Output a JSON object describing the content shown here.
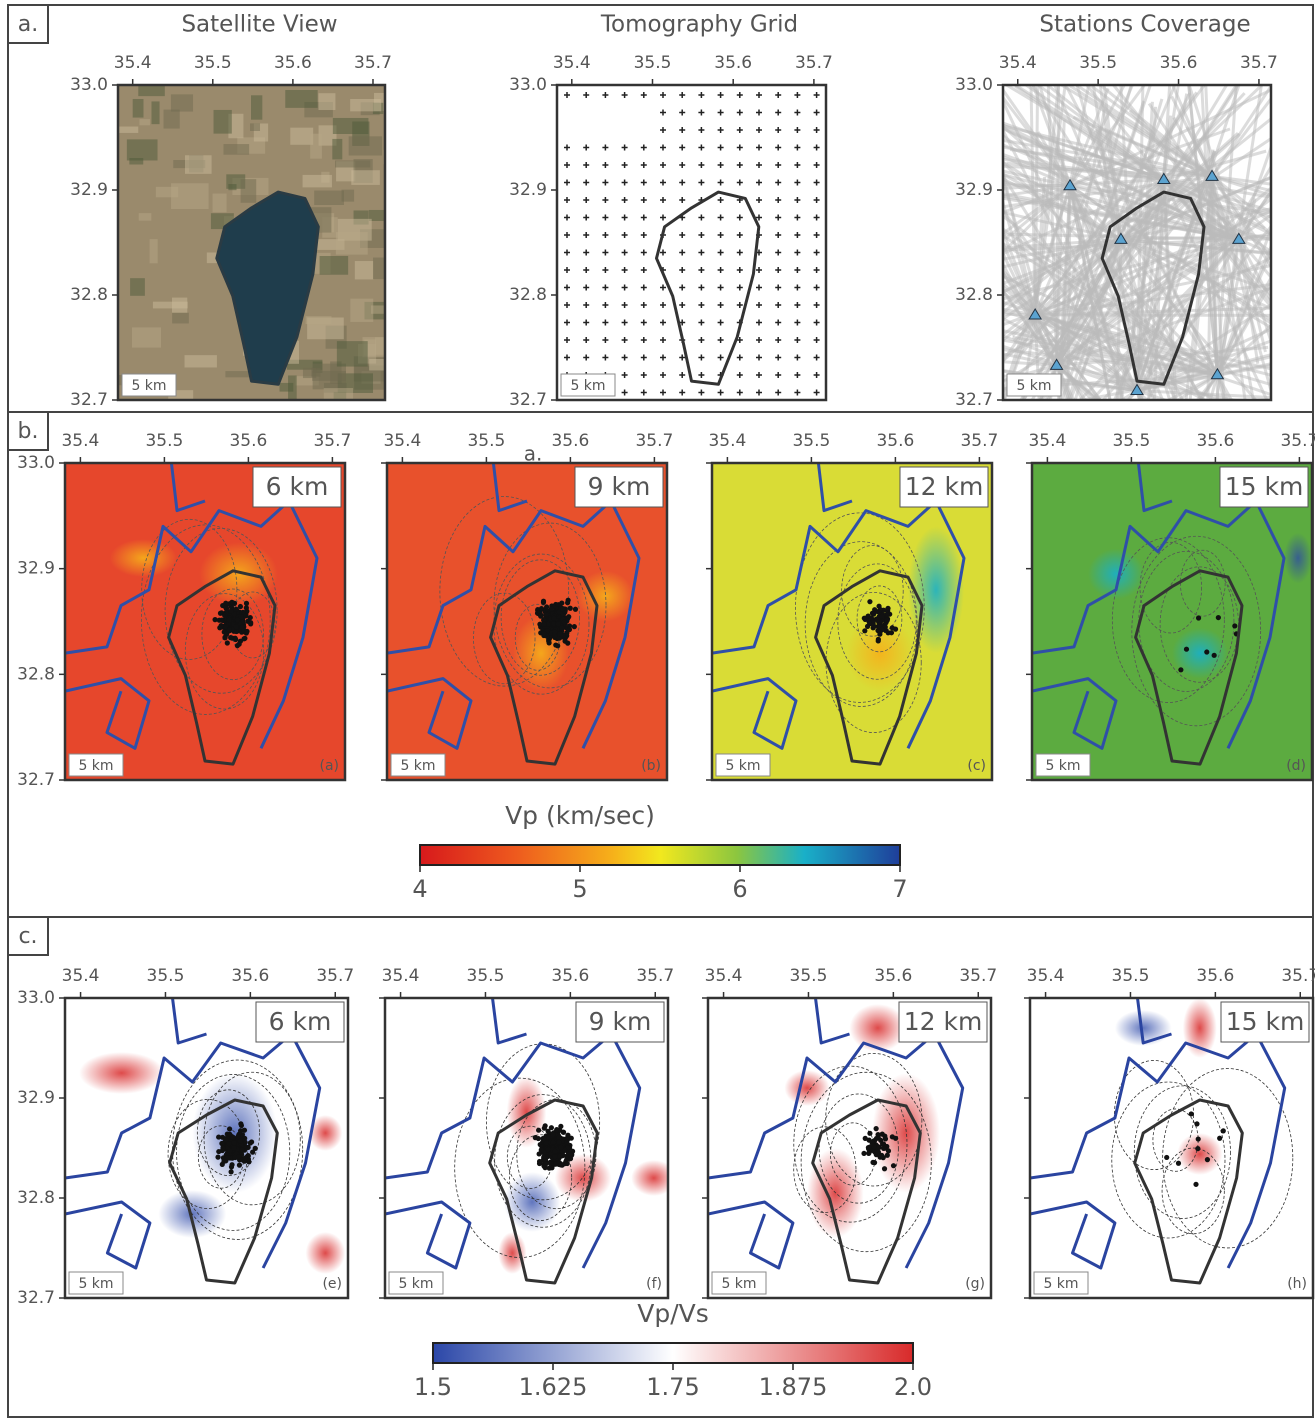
{
  "xtick_labels": [
    "35.4",
    "35.5",
    "35.6",
    "35.7"
  ],
  "ytick_labels": [
    "33.0",
    "32.9",
    "32.8",
    "32.7"
  ],
  "scale_bar": "5 km",
  "panel_a": {
    "label": "a.",
    "titles": [
      "Satellite View",
      "Tomography Grid",
      "Stations Coverage"
    ]
  },
  "panel_b": {
    "label": "b.",
    "stray_label": "a.",
    "depths": [
      "6 km",
      "9 km",
      "12 km",
      "15 km"
    ],
    "map_labels": [
      "(a)",
      "(b)",
      "(c)",
      "(d)"
    ],
    "colorbar": {
      "title": "Vp (km/sec)",
      "ticks": [
        "4",
        "5",
        "6",
        "7"
      ]
    }
  },
  "panel_c": {
    "label": "c.",
    "depths": [
      "6 km",
      "9 km",
      "12 km",
      "15 km"
    ],
    "map_labels": [
      "(e)",
      "(f)",
      "(g)",
      "(h)"
    ],
    "colorbar": {
      "title": "Vp/Vs",
      "ticks": [
        "1.5",
        "1.625",
        "1.75",
        "1.875",
        "2.0"
      ]
    }
  }
}
